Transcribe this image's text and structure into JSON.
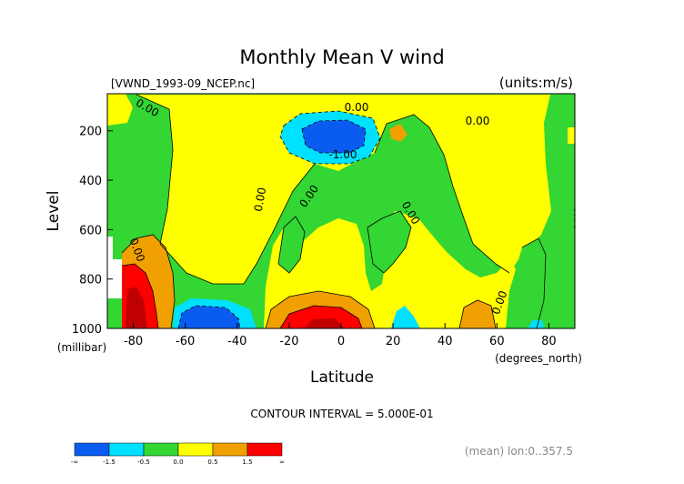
{
  "chart_data": {
    "type": "heatmap",
    "title": "Monthly Mean V wind",
    "file_label": "[VWND_1993-09_NCEP.nc]",
    "units_label": "(units:m/s)",
    "xlabel": "Latitude",
    "x_unit_label": "(degrees_north)",
    "ylabel": "Level",
    "y_unit_label": "(millibar)",
    "xlim": [
      -90,
      90
    ],
    "ylim": [
      1000,
      50
    ],
    "x_ticks": [
      -80,
      -60,
      -40,
      -20,
      0,
      20,
      40,
      60,
      80
    ],
    "y_ticks": [
      200,
      400,
      600,
      800,
      1000
    ],
    "contour_interval_text": "CONTOUR INTERVAL = 5.000E-01",
    "averaging_text": "(mean) lon:0..357.5",
    "contour_labels": [
      "0.00",
      "0.00",
      "0.00",
      "-1.00",
      "0.00",
      "0.00",
      "0.00",
      "0.00",
      "0.00",
      "0.00"
    ],
    "colorbar": {
      "labels": [
        "-∞",
        "-1.5",
        "-0.5",
        "0.0",
        "0.5",
        "1.5",
        "∞"
      ],
      "colors": [
        "#0a5cf0",
        "#00e0ff",
        "#33d633",
        "#ffff00",
        "#f0a000",
        "#ff0000"
      ]
    },
    "palette": {
      "strong_negative": "#0a5cf0",
      "negative": "#00e0ff",
      "near_zero_negative": "#33d633",
      "near_zero_positive": "#ffff00",
      "positive": "#f0a000",
      "strong_positive": "#ff0000",
      "extreme_positive": "#c00000"
    }
  }
}
